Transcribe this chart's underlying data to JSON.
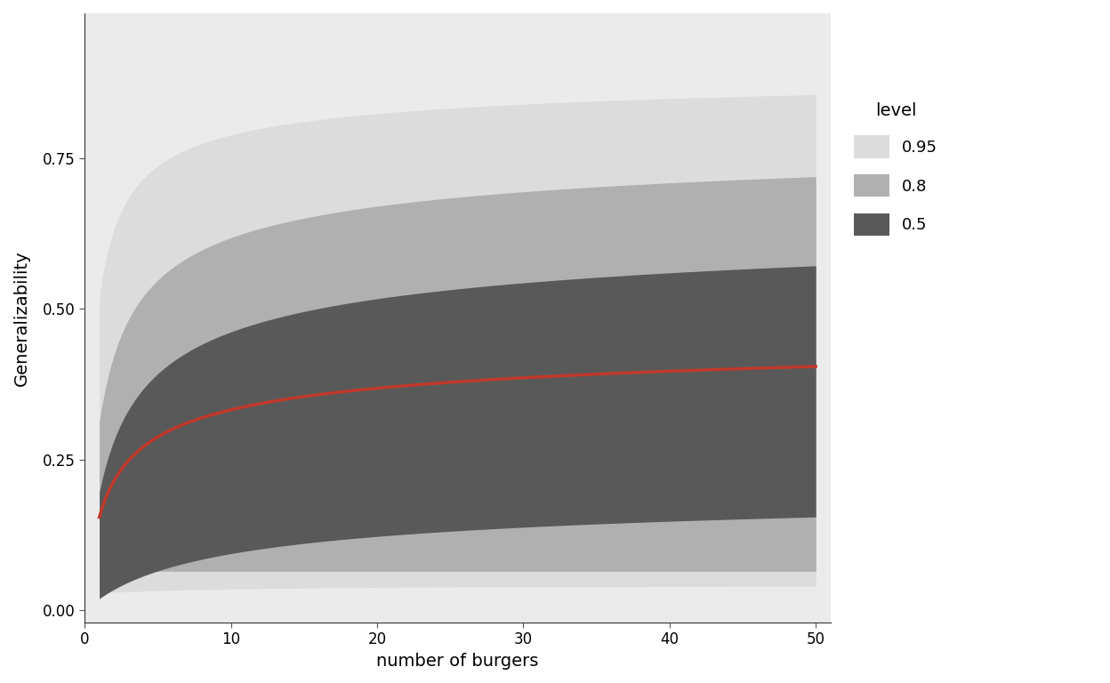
{
  "xlabel": "number of burgers",
  "ylabel": "Generalizability",
  "xlim": [
    0,
    51
  ],
  "ylim": [
    -0.02,
    0.99
  ],
  "xticks": [
    0,
    10,
    20,
    30,
    40,
    50
  ],
  "yticks": [
    0.0,
    0.25,
    0.5,
    0.75
  ],
  "background_color": "#ffffff",
  "panel_background": "#ebebeb",
  "band_colors": {
    "0.95": "#dcdcdc",
    "0.8": "#b0b0b0",
    "0.5": "#595959"
  },
  "line_color": "#c0392b",
  "line_width": 2.5,
  "legend_title": "level",
  "n_points": 300,
  "median_params": {
    "L": 0.6,
    "k": 0.55,
    "p": 0.3
  },
  "upper_params": {
    "0.95": {
      "a": 0.72,
      "b": 0.13,
      "c": 0.01
    },
    "0.8": {
      "a": 0.46,
      "b": 0.12,
      "c": 0.01
    },
    "0.5": {
      "a": 0.21,
      "b": 0.09,
      "c": 0.005
    }
  },
  "lower_params": {
    "0.95": {
      "a": 0.195,
      "b": 0.1,
      "c": 0.0
    },
    "0.8": {
      "a": 0.145,
      "b": 0.08,
      "c": 0.0
    },
    "0.5": {
      "a": 0.105,
      "b": 0.06,
      "c": 0.0
    }
  }
}
